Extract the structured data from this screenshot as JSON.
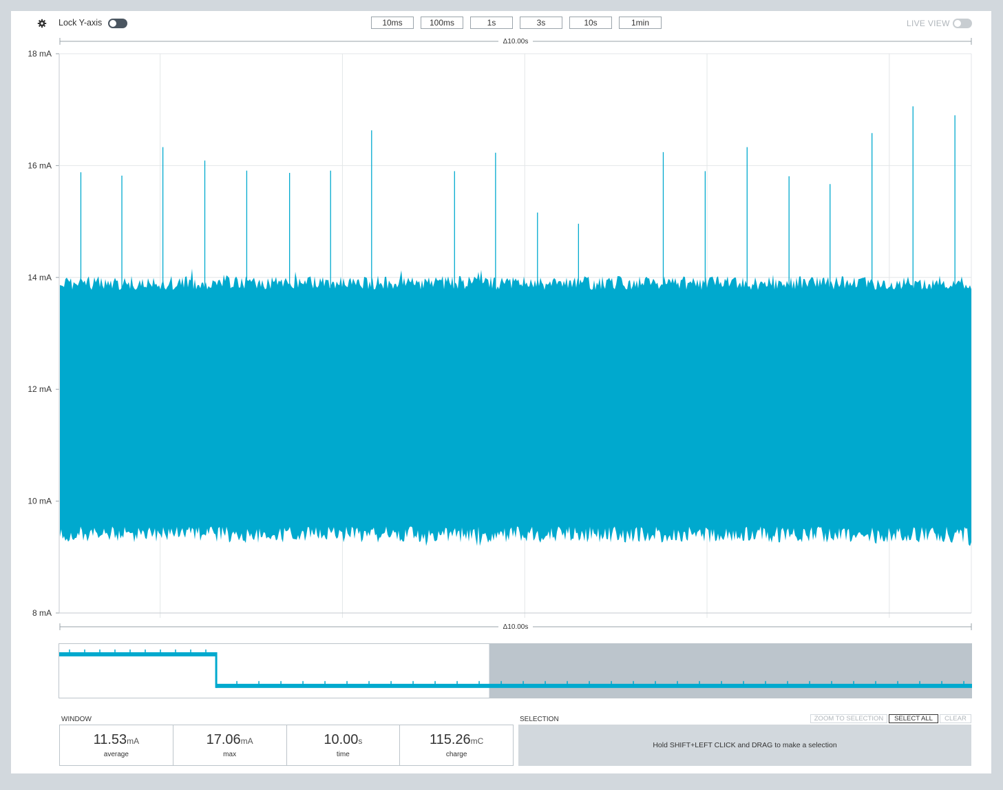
{
  "toolbar": {
    "lock_label": "Lock Y-axis",
    "lock_checked": true,
    "live_label": "LIVE VIEW",
    "live_checked": false,
    "window_buttons": [
      "10ms",
      "100ms",
      "1s",
      "3s",
      "10s",
      "1min"
    ]
  },
  "colors": {
    "signal": "#00a9ce",
    "grid": "#e3e6e8",
    "axis_text": "#333333",
    "selection_shade": "#bcc5cc"
  },
  "chart_data": {
    "type": "line",
    "ylabel_unit": "mA",
    "ylim": [
      8,
      18
    ],
    "yticks": [
      {
        "value": 18,
        "label": "18 mA"
      },
      {
        "value": 16,
        "label": "16 mA"
      },
      {
        "value": 14,
        "label": "14 mA"
      },
      {
        "value": 12,
        "label": "12 mA"
      },
      {
        "value": 10,
        "label": "10 mA"
      },
      {
        "value": 8,
        "label": "8 mA"
      }
    ],
    "window_seconds": 10.0,
    "span_label_top": "Δ10.00s",
    "span_label_bottom": "Δ10.00s",
    "x_gridlines_s": [
      1.1,
      3.1,
      5.1,
      7.1,
      9.1
    ],
    "band": {
      "upper_mA": 13.9,
      "lower_mA": 9.4
    },
    "spikes": [
      {
        "t": 0.23,
        "mA": 15.88
      },
      {
        "t": 0.68,
        "mA": 15.82
      },
      {
        "t": 1.13,
        "mA": 16.33
      },
      {
        "t": 1.59,
        "mA": 16.09
      },
      {
        "t": 2.05,
        "mA": 15.91
      },
      {
        "t": 2.52,
        "mA": 15.87
      },
      {
        "t": 2.97,
        "mA": 15.91
      },
      {
        "t": 3.42,
        "mA": 16.63
      },
      {
        "t": 4.33,
        "mA": 15.9
      },
      {
        "t": 4.78,
        "mA": 16.23
      },
      {
        "t": 5.24,
        "mA": 15.16
      },
      {
        "t": 5.69,
        "mA": 14.96
      },
      {
        "t": 6.62,
        "mA": 16.24
      },
      {
        "t": 7.08,
        "mA": 15.9
      },
      {
        "t": 7.54,
        "mA": 16.33
      },
      {
        "t": 8.0,
        "mA": 15.81
      },
      {
        "t": 8.45,
        "mA": 15.67
      },
      {
        "t": 8.91,
        "mA": 16.58
      },
      {
        "t": 9.36,
        "mA": 17.06
      },
      {
        "t": 9.82,
        "mA": 16.9
      }
    ],
    "overview": {
      "step_fraction": 0.172,
      "high_level": 0.19,
      "low_level": 0.77,
      "selection_start_fraction": 0.471
    }
  },
  "window_stats": {
    "title": "WINDOW",
    "items": [
      {
        "value": "11.53",
        "unit": "mA",
        "label": "average"
      },
      {
        "value": "17.06",
        "unit": "mA",
        "label": "max"
      },
      {
        "value": "10.00",
        "unit": "s",
        "label": "time"
      },
      {
        "value": "115.26",
        "unit": "mC",
        "label": "charge"
      }
    ]
  },
  "selection": {
    "title": "SELECTION",
    "zoom_label": "ZOOM TO SELECTION",
    "select_all_label": "SELECT ALL",
    "clear_label": "CLEAR",
    "hint": "Hold SHIFT+LEFT CLICK and DRAG to make a selection"
  }
}
